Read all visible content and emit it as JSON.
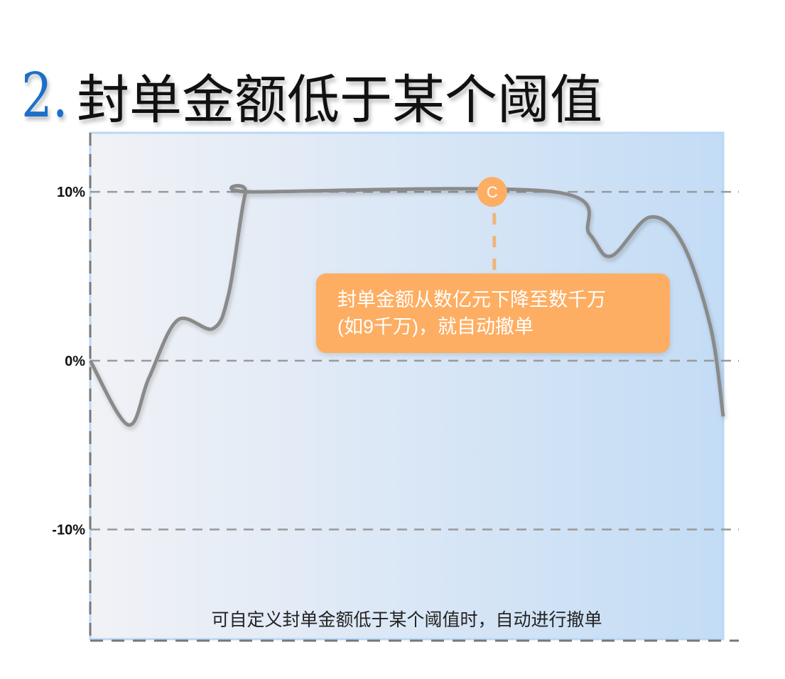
{
  "header": {
    "number": "2.",
    "title": "封单金额低于某个阈值"
  },
  "caption": "可自定义封单金额低于某个阈值时，自动进行撤单",
  "colors": {
    "line": "#8a8a8a",
    "accent": "#fdae63",
    "title_number": "#1d6fc9",
    "bg_left": "#f1f2f6",
    "bg_right": "#c3dcf5"
  },
  "chart_data": {
    "type": "line",
    "ylim": [
      -16.5,
      13.5
    ],
    "xlim": [
      0,
      100
    ],
    "yticks": [
      10,
      0,
      -10
    ],
    "ytick_labels": [
      "10%",
      "0%",
      "-10%"
    ],
    "grid": "dashed horizontal",
    "series": [
      {
        "x": [
          0,
          6,
          9.3,
          13.8,
          19.4,
          21.9,
          24.5,
          26.2,
          73.3,
          78.9,
          82.3,
          88.4,
          93.5,
          98,
          100
        ],
        "y": [
          0,
          -3.8,
          -1,
          2.4,
          1.9,
          4,
          9.9,
          10,
          10,
          7.5,
          6.2,
          8.5,
          7,
          2,
          -3.3
        ]
      }
    ],
    "marker": {
      "label": "C",
      "x": 63.5,
      "y": 10
    },
    "annotation_lines": [
      "封单金额从数亿元下降至数千万",
      "(如9千万)，就自动撤单"
    ]
  }
}
